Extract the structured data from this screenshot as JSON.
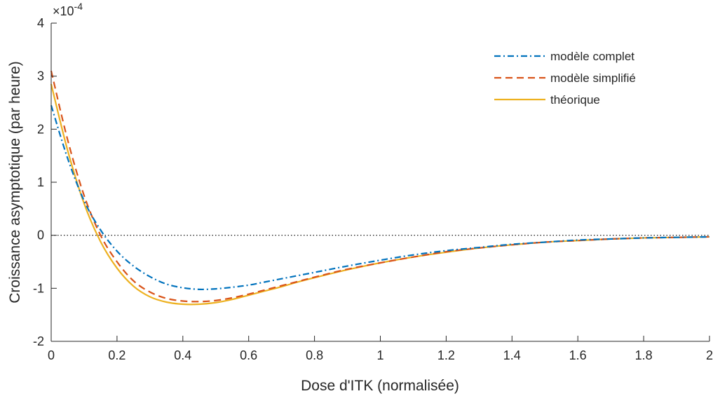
{
  "chart_data": {
    "type": "line",
    "title": "",
    "xlabel": "Dose d'ITK (normalisée)",
    "ylabel": "Croissance asymptotique (par heure)",
    "y_exponent_label": "×10",
    "y_exponent_power": "-4",
    "xlim": [
      0,
      2
    ],
    "ylim": [
      -2,
      4
    ],
    "x_ticks": [
      "0",
      "0.2",
      "0.4",
      "0.6",
      "0.8",
      "1",
      "1.2",
      "1.4",
      "1.6",
      "1.8",
      "2"
    ],
    "y_ticks": [
      "-2",
      "-1",
      "0",
      "1",
      "2",
      "3",
      "4"
    ],
    "legend_position": "top-right",
    "grid": false,
    "zero_reference_line": true,
    "colors": {
      "modele_complet": "#0072BD",
      "modele_simplifie": "#D95319",
      "theorique": "#EDB120",
      "zero_line": "#000000"
    },
    "series": [
      {
        "name": "modèle complet",
        "style": "dash-dot",
        "x": [
          0,
          0.05,
          0.1,
          0.15,
          0.2,
          0.25,
          0.3,
          0.35,
          0.4,
          0.45,
          0.5,
          0.55,
          0.6,
          0.65,
          0.7,
          0.75,
          0.8,
          0.9,
          1.0,
          1.1,
          1.2,
          1.3,
          1.4,
          1.5,
          1.6,
          1.7,
          1.8,
          1.9,
          2.0
        ],
        "values": [
          2.45,
          1.45,
          0.65,
          0.1,
          -0.3,
          -0.58,
          -0.78,
          -0.92,
          -0.99,
          -1.02,
          -1.01,
          -0.98,
          -0.94,
          -0.88,
          -0.82,
          -0.76,
          -0.7,
          -0.58,
          -0.47,
          -0.37,
          -0.29,
          -0.23,
          -0.17,
          -0.13,
          -0.09,
          -0.07,
          -0.05,
          -0.04,
          -0.03
        ]
      },
      {
        "name": "modèle simplifié",
        "style": "dashed",
        "x": [
          0,
          0.05,
          0.1,
          0.15,
          0.2,
          0.25,
          0.3,
          0.35,
          0.4,
          0.45,
          0.5,
          0.55,
          0.6,
          0.65,
          0.7,
          0.75,
          0.8,
          0.9,
          1.0,
          1.1,
          1.2,
          1.3,
          1.4,
          1.5,
          1.6,
          1.7,
          1.8,
          1.9,
          2.0
        ],
        "values": [
          3.1,
          1.8,
          0.75,
          0.0,
          -0.5,
          -0.86,
          -1.07,
          -1.19,
          -1.24,
          -1.25,
          -1.23,
          -1.18,
          -1.11,
          -1.03,
          -0.95,
          -0.87,
          -0.79,
          -0.64,
          -0.52,
          -0.41,
          -0.31,
          -0.24,
          -0.18,
          -0.13,
          -0.1,
          -0.07,
          -0.05,
          -0.04,
          -0.03
        ]
      },
      {
        "name": "théorique",
        "style": "solid",
        "x": [
          0,
          0.05,
          0.1,
          0.15,
          0.2,
          0.25,
          0.3,
          0.35,
          0.4,
          0.45,
          0.5,
          0.55,
          0.6,
          0.65,
          0.7,
          0.75,
          0.8,
          0.9,
          1.0,
          1.1,
          1.2,
          1.3,
          1.4,
          1.5,
          1.6,
          1.7,
          1.8,
          1.9,
          2.0
        ],
        "values": [
          2.85,
          1.6,
          0.6,
          -0.12,
          -0.62,
          -0.96,
          -1.16,
          -1.26,
          -1.3,
          -1.3,
          -1.27,
          -1.21,
          -1.13,
          -1.05,
          -0.97,
          -0.88,
          -0.8,
          -0.65,
          -0.52,
          -0.41,
          -0.32,
          -0.24,
          -0.18,
          -0.13,
          -0.1,
          -0.07,
          -0.05,
          -0.04,
          -0.03
        ]
      }
    ]
  }
}
